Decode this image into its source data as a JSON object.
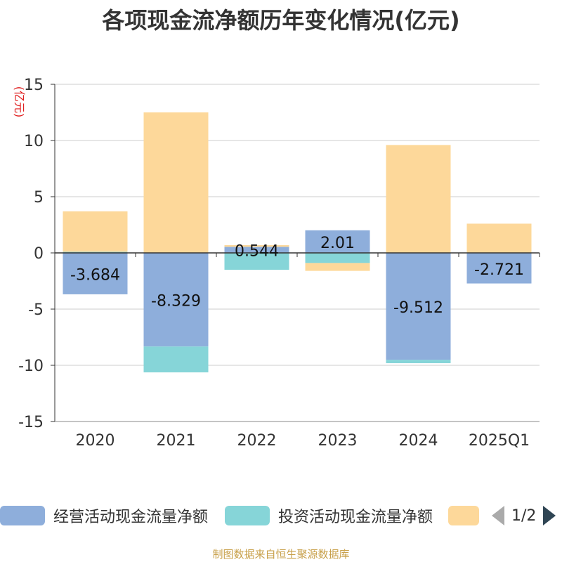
{
  "chart_data": {
    "type": "bar",
    "stacked": true,
    "title": "各项现金流净额历年变化情况(亿元)",
    "unit_label": "(亿元)",
    "categories": [
      "2020",
      "2021",
      "2022",
      "2023",
      "2024",
      "2025Q1"
    ],
    "ylim": [
      -15,
      15
    ],
    "yticks": [
      15,
      10,
      5,
      0,
      -5,
      -10,
      -15
    ],
    "grid": true,
    "legend_position": "bottom",
    "series": [
      {
        "name": "经营活动现金流量净额",
        "color": "#8eaedb",
        "values": [
          -3.684,
          -8.329,
          0.544,
          2.01,
          -9.512,
          -2.721
        ],
        "labels": [
          "-3.684",
          "-8.329",
          "0.544",
          "2.01",
          "-9.512",
          "-2.721"
        ]
      },
      {
        "name": "投资活动现金流量净额",
        "color": "#86d5d8",
        "values": [
          0.1,
          -2.3,
          -1.5,
          -0.9,
          -0.3,
          0
        ]
      },
      {
        "name": "",
        "color": "#fdd89a",
        "values": [
          3.6,
          12.5,
          0.15,
          -0.7,
          9.6,
          2.6
        ]
      }
    ]
  },
  "legend": {
    "items": [
      {
        "label": "经营活动现金流量净额",
        "color": "#8eaedb"
      },
      {
        "label": "投资活动现金流量净额",
        "color": "#86d5d8"
      },
      {
        "label": "",
        "color": "#fdd89a"
      }
    ],
    "page": "1/2"
  },
  "footer": "制图数据来自恒生聚源数据库"
}
